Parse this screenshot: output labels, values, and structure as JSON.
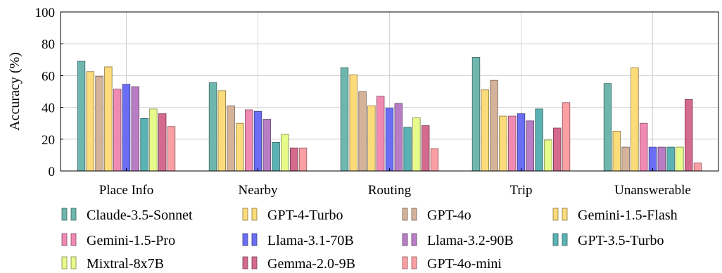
{
  "chart_data": {
    "type": "bar",
    "ylabel": "Accuracy (%)",
    "xlabel": "",
    "ylim": [
      0,
      100
    ],
    "yticks": [
      0,
      20,
      40,
      60,
      80,
      100
    ],
    "grid": true,
    "legend_position": "bottom",
    "categories": [
      "Place Info",
      "Nearby",
      "Routing",
      "Trip",
      "Unanswerable"
    ],
    "series": [
      {
        "name": "Claude-3.5-Sonnet",
        "color": "#6fb7ae",
        "values": [
          69,
          55.5,
          65,
          71.5,
          55
        ]
      },
      {
        "name": "GPT-4-Turbo",
        "color": "#fcdb7a",
        "values": [
          62.5,
          50.5,
          60.5,
          51,
          25
        ]
      },
      {
        "name": "GPT-4o",
        "color": "#d4b39a",
        "values": [
          59.5,
          41,
          50,
          57,
          15
        ]
      },
      {
        "name": "Gemini-1.5-Flash",
        "color": "#fcdb7a",
        "values": [
          65.5,
          30,
          41,
          34.5,
          65
        ]
      },
      {
        "name": "Gemini-1.5-Pro",
        "color": "#f08ab5",
        "values": [
          51.5,
          38.5,
          47,
          34.5,
          30
        ]
      },
      {
        "name": "Llama-3.1-70B",
        "color": "#6b6ef5",
        "values": [
          54.5,
          37.5,
          39.5,
          36,
          15
        ]
      },
      {
        "name": "Llama-3.2-90B",
        "color": "#b87dc4",
        "values": [
          53,
          32.5,
          42.5,
          31.5,
          15
        ]
      },
      {
        "name": "GPT-3.5-Turbo",
        "color": "#5ab2b2",
        "values": [
          33,
          18,
          27.5,
          39,
          15
        ]
      },
      {
        "name": "Mixtral-8x7B",
        "color": "#e6fb8a",
        "values": [
          39,
          23,
          33.5,
          19.5,
          15
        ]
      },
      {
        "name": "Gemma-2.0-9B",
        "color": "#d46a8e",
        "values": [
          36,
          14.5,
          28.5,
          27,
          45
        ]
      },
      {
        "name": "GPT-4o-mini",
        "color": "#fa9fa4",
        "values": [
          28,
          14.5,
          14,
          43,
          5
        ]
      }
    ]
  }
}
